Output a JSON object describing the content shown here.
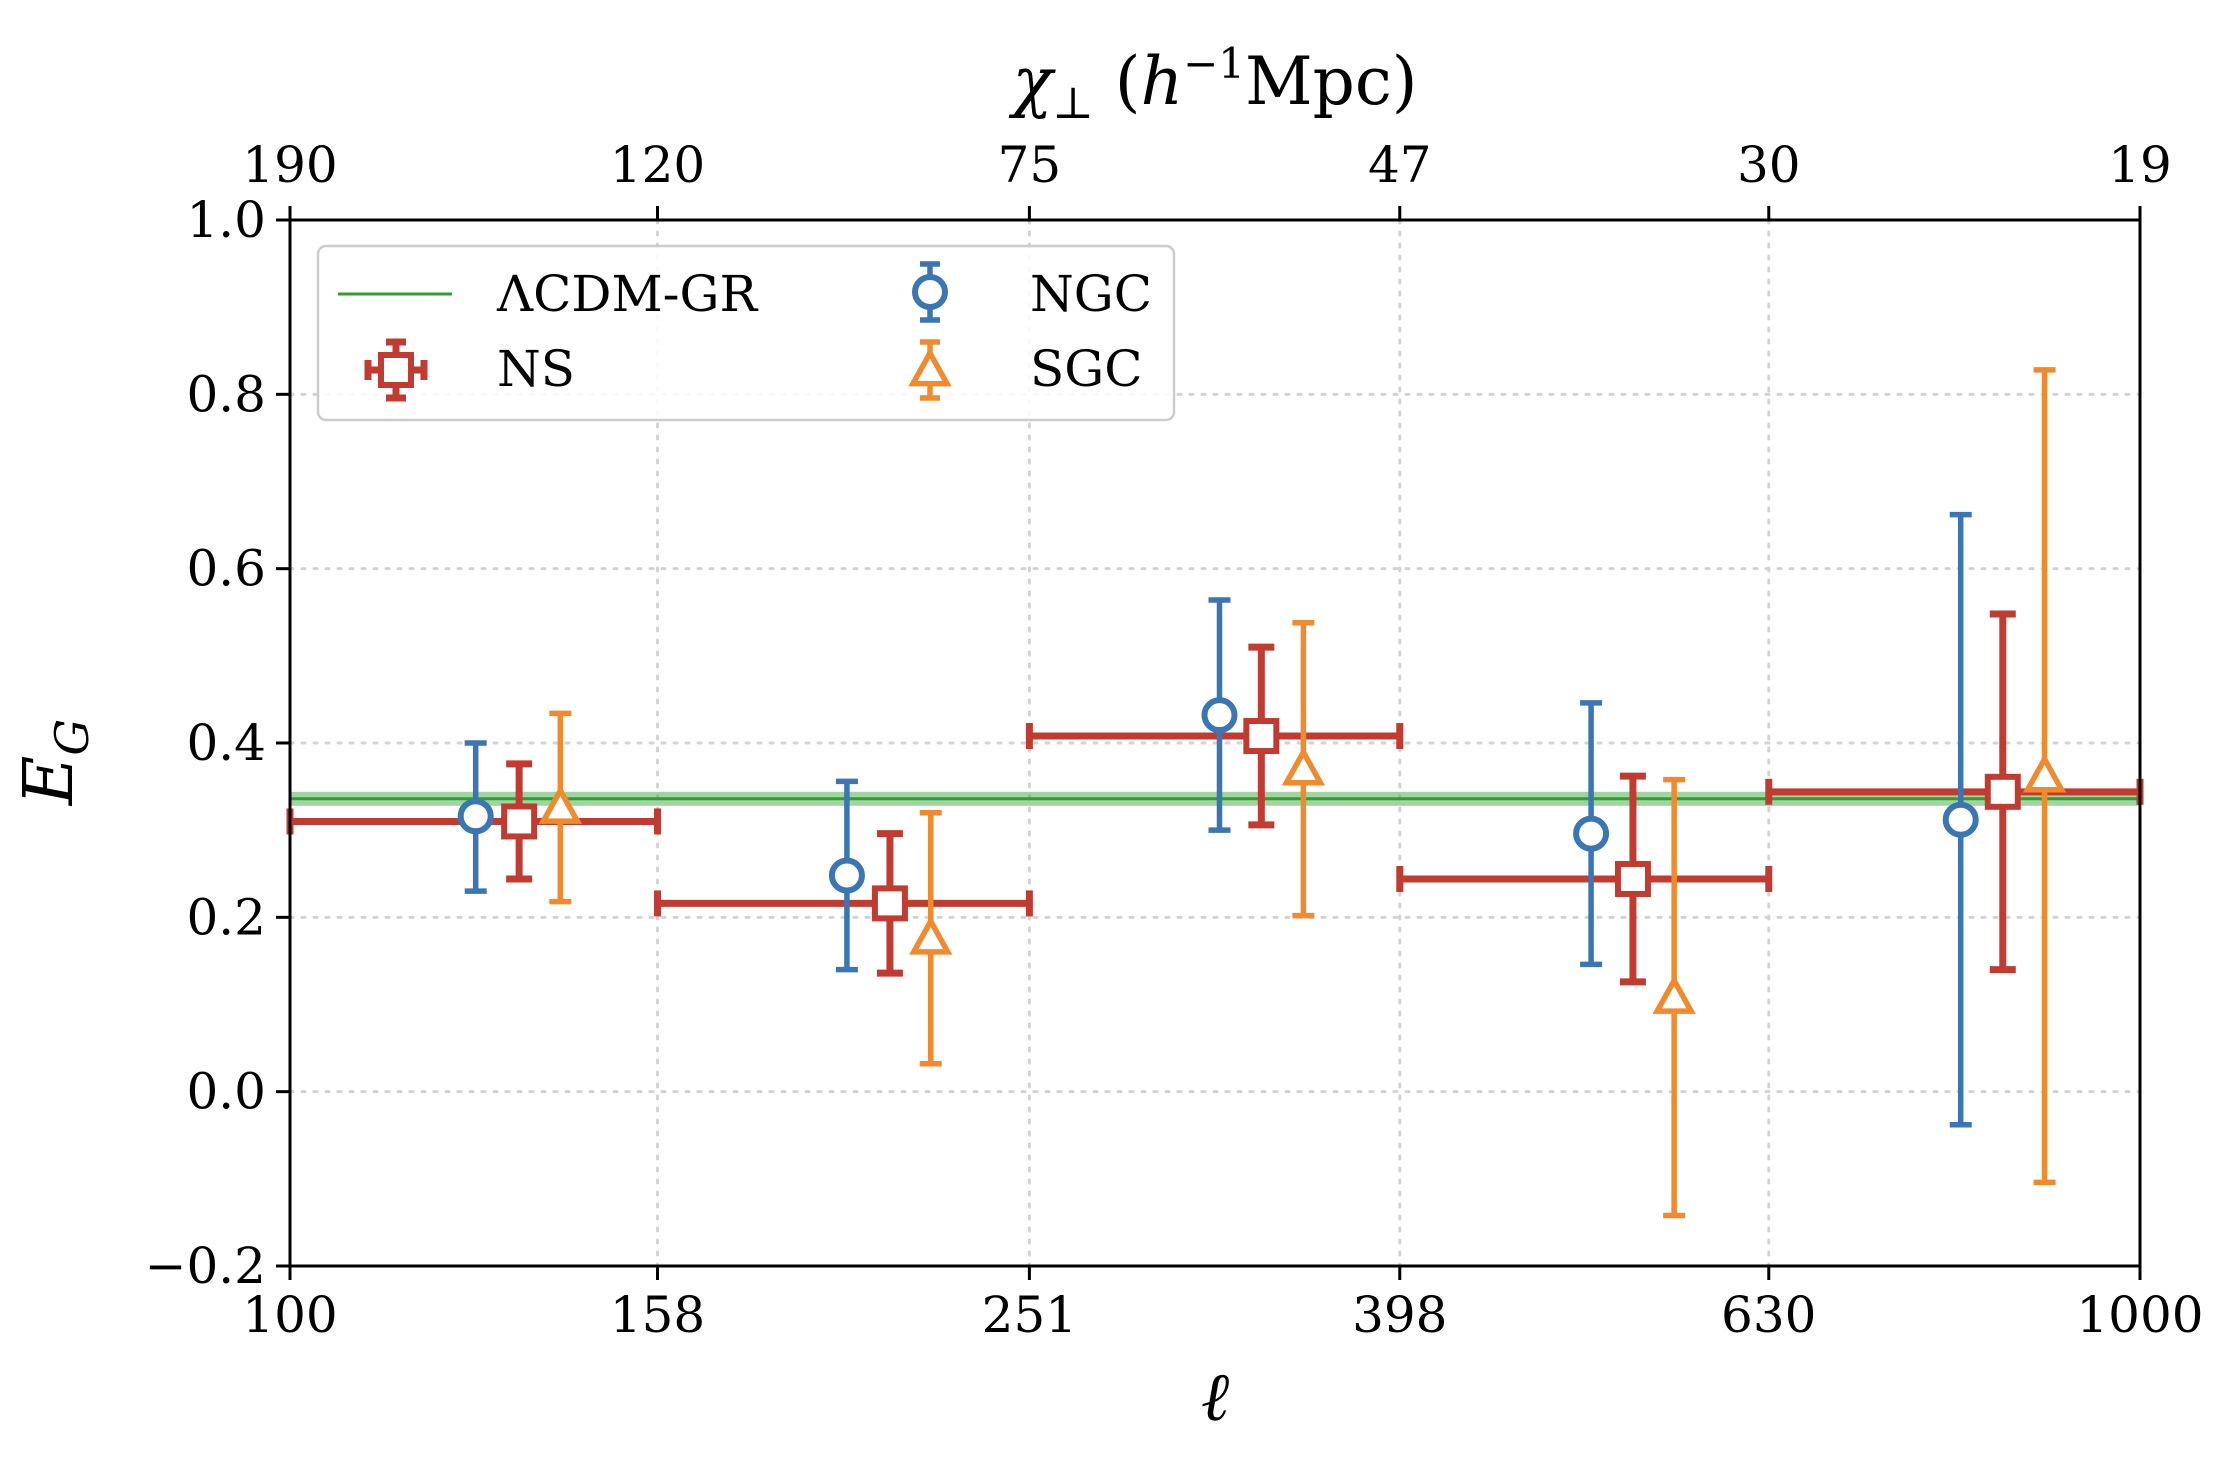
{
  "chart_data": {
    "type": "scatter",
    "x_scale": "log",
    "xlabel": "ℓ",
    "ylabel": "E",
    "ylabel_sub": "G",
    "top_xlabel_prefix": "χ",
    "top_xlabel_sub": "⊥",
    "top_xlabel_open": " (",
    "top_xlabel_h": "h",
    "top_xlabel_sup": "−1",
    "top_xlabel_unit": "Mpc)",
    "xlim": [
      100,
      1000
    ],
    "ylim": [
      -0.2,
      1.0
    ],
    "bottom_ticks": [
      {
        "value": 100,
        "label": "100"
      },
      {
        "value": 158,
        "label": "158"
      },
      {
        "value": 251,
        "label": "251"
      },
      {
        "value": 398,
        "label": "398"
      },
      {
        "value": 630,
        "label": "630"
      },
      {
        "value": 1000,
        "label": "1000"
      }
    ],
    "top_ticks": [
      {
        "value": 100,
        "label": "190"
      },
      {
        "value": 158,
        "label": "120"
      },
      {
        "value": 251,
        "label": "75"
      },
      {
        "value": 398,
        "label": "47"
      },
      {
        "value": 630,
        "label": "30"
      },
      {
        "value": 1000,
        "label": "19"
      }
    ],
    "y_ticks": [
      {
        "value": -0.2,
        "label": "−0.2"
      },
      {
        "value": 0.0,
        "label": "0.0"
      },
      {
        "value": 0.2,
        "label": "0.2"
      },
      {
        "value": 0.4,
        "label": "0.4"
      },
      {
        "value": 0.6,
        "label": "0.6"
      },
      {
        "value": 0.8,
        "label": "0.8"
      },
      {
        "value": 1.0,
        "label": "1.0"
      }
    ],
    "grid": true,
    "legend_position": "top-left",
    "reference_line": {
      "name": "ΛCDM-GR",
      "value": 0.336,
      "band": [
        0.328,
        0.344
      ],
      "color": "#2ca02c"
    },
    "series": [
      {
        "name": "NGC",
        "marker": "circle",
        "color": "#3a76b4",
        "points": [
          {
            "x": 126,
            "y": 0.316,
            "yerr_low": 0.086,
            "yerr_high": 0.084
          },
          {
            "x": 200,
            "y": 0.248,
            "yerr_low": 0.108,
            "yerr_high": 0.108
          },
          {
            "x": 318,
            "y": 0.432,
            "yerr_low": 0.132,
            "yerr_high": 0.132
          },
          {
            "x": 505,
            "y": 0.296,
            "yerr_low": 0.15,
            "yerr_high": 0.15
          },
          {
            "x": 800,
            "y": 0.312,
            "yerr_low": 0.35,
            "yerr_high": 0.35
          }
        ]
      },
      {
        "name": "NS",
        "marker": "square",
        "color": "#c23b31",
        "points": [
          {
            "x": 133,
            "y": 0.31,
            "yerr_low": 0.066,
            "yerr_high": 0.066,
            "xmin": 100,
            "xmax": 158
          },
          {
            "x": 211,
            "y": 0.216,
            "yerr_low": 0.08,
            "yerr_high": 0.08,
            "xmin": 158,
            "xmax": 251
          },
          {
            "x": 335,
            "y": 0.408,
            "yerr_low": 0.102,
            "yerr_high": 0.102,
            "xmin": 251,
            "xmax": 398
          },
          {
            "x": 532,
            "y": 0.244,
            "yerr_low": 0.118,
            "yerr_high": 0.118,
            "xmin": 398,
            "xmax": 630
          },
          {
            "x": 843,
            "y": 0.344,
            "yerr_low": 0.204,
            "yerr_high": 0.204,
            "xmin": 630,
            "xmax": 1000
          }
        ]
      },
      {
        "name": "SGC",
        "marker": "triangle",
        "color": "#f08a2c",
        "points": [
          {
            "x": 140,
            "y": 0.326,
            "yerr_low": 0.108,
            "yerr_high": 0.108
          },
          {
            "x": 222,
            "y": 0.176,
            "yerr_low": 0.144,
            "yerr_high": 0.144
          },
          {
            "x": 353,
            "y": 0.37,
            "yerr_low": 0.168,
            "yerr_high": 0.168
          },
          {
            "x": 560,
            "y": 0.108,
            "yerr_low": 0.25,
            "yerr_high": 0.25
          },
          {
            "x": 888,
            "y": 0.362,
            "yerr_low": 0.466,
            "yerr_high": 0.466
          }
        ]
      }
    ]
  }
}
